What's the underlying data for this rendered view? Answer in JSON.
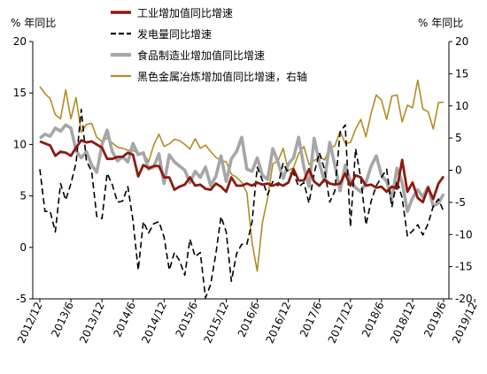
{
  "chart_data": {
    "type": "line",
    "left_axis_unit": "% 年同比",
    "right_axis_unit": "% 年同比",
    "left_ylim": [
      -5,
      20
    ],
    "right_ylim": [
      -20,
      20
    ],
    "left_ticks": [
      "20",
      "15",
      "10",
      "5",
      "0",
      "-5"
    ],
    "right_ticks": [
      "20",
      "15",
      "10",
      "5",
      "0",
      "-5",
      "-10",
      "-15",
      "-20"
    ],
    "x_tick_labels": [
      "2012/12",
      "2013/6",
      "2013/12",
      "2014/6",
      "2014/12",
      "2015/6",
      "2015/12",
      "2016/6",
      "2016/12",
      "2017/6",
      "2017/12",
      "2018/6",
      "2018/12",
      "2019/6",
      "2019/12"
    ],
    "start_month": "2012/12",
    "grid": false,
    "legend_position": "top",
    "series": [
      {
        "name": "工业增加值同比增速",
        "axis": "left",
        "color": "#8b1a10",
        "style": "solid",
        "values": [
          10.3,
          10.1,
          9.9,
          8.9,
          9.3,
          9.2,
          8.9,
          9.7,
          10.4,
          10.2,
          10.3,
          10.0,
          9.7,
          8.6,
          8.6,
          8.8,
          8.8,
          9.2,
          9.0,
          6.9,
          8.0,
          7.7,
          7.9,
          7.9,
          6.8,
          6.8,
          5.6,
          5.9,
          6.1,
          6.8,
          6.0,
          6.1,
          5.7,
          5.6,
          6.2,
          5.9,
          5.4,
          6.8,
          6.0,
          6.0,
          6.2,
          6.0,
          6.3,
          6.1,
          6.2,
          6.0,
          6.2,
          6.0,
          6.3,
          7.6,
          6.5,
          6.5,
          7.6,
          6.4,
          6.0,
          6.6,
          6.2,
          6.1,
          6.2,
          7.2,
          6.0,
          7.0,
          6.8,
          6.0,
          6.1,
          5.8,
          5.9,
          5.4,
          5.9,
          5.7,
          8.5,
          5.4,
          6.3,
          4.8,
          4.4,
          5.8,
          4.7,
          6.2,
          6.9
        ]
      },
      {
        "name": "发电量同比增速",
        "axis": "left",
        "color": "#000000",
        "style": "dashed",
        "values": [
          7.6,
          3.5,
          3.5,
          1.5,
          6.2,
          4.6,
          6.2,
          8.2,
          13.4,
          8.4,
          7.4,
          3.0,
          2.8,
          7.2,
          6.1,
          4.4,
          4.5,
          5.9,
          2.6,
          -2.2,
          2.5,
          1.4,
          2.3,
          2.5,
          1.0,
          -2.2,
          -0.5,
          -1.3,
          -2.7,
          0.8,
          -0.9,
          -0.5,
          -4.9,
          -3.6,
          -0.6,
          3.0,
          1.5,
          -3.3,
          -0.6,
          0.3,
          0.3,
          2.5,
          7.8,
          6.5,
          5.1,
          6.4,
          6.0,
          8.2,
          7.2,
          7.2,
          5.9,
          6.3,
          4.3,
          7.2,
          9.2,
          7.6,
          4.4,
          5.5,
          11.2,
          11.9,
          2.0,
          9.6,
          6.7,
          2.2,
          4.5,
          6.0,
          6.8,
          7.6,
          3.9,
          6.5,
          4.8,
          1.1,
          1.6,
          2.2,
          1.2,
          2.3,
          4.0,
          4.7,
          3.5
        ]
      },
      {
        "name": "食品制造业增加值同比增速",
        "axis": "left",
        "color": "#a6a6a6",
        "style": "solid",
        "values": [
          10.6,
          11.0,
          10.8,
          11.6,
          11.3,
          11.9,
          11.6,
          9.4,
          8.7,
          9.3,
          8.0,
          7.3,
          10.0,
          11.4,
          9.3,
          8.4,
          8.8,
          8.3,
          10.1,
          9.0,
          9.2,
          7.6,
          7.8,
          9.1,
          6.2,
          9.0,
          8.3,
          7.9,
          7.5,
          6.3,
          7.4,
          6.8,
          7.8,
          6.0,
          6.9,
          8.9,
          6.4,
          8.6,
          9.3,
          10.7,
          7.6,
          7.4,
          8.7,
          7.0,
          6.6,
          9.6,
          8.3,
          6.7,
          8.1,
          8.7,
          10.7,
          7.8,
          5.9,
          10.6,
          8.2,
          6.4,
          10.2,
          8.0,
          5.5,
          8.0,
          6.5,
          5.8,
          5.4,
          6.3,
          7.9,
          8.9,
          7.0,
          6.4,
          4.7,
          7.7,
          6.3,
          3.5,
          4.8,
          5.6,
          4.9,
          5.9,
          4.0,
          4.3,
          5.2
        ]
      },
      {
        "name": "黑色金属冶炼增加值同比增速，右轴",
        "axis": "right",
        "color": "#b08c25",
        "style": "solid",
        "values": [
          13.0,
          11.9,
          11.1,
          8.6,
          8.0,
          12.5,
          8.0,
          11.3,
          5.9,
          7.1,
          7.3,
          5.1,
          4.5,
          5.0,
          4.2,
          3.6,
          3.4,
          3.1,
          3.1,
          2.6,
          2.7,
          1.3,
          3.9,
          5.6,
          3.7,
          4.1,
          4.8,
          4.6,
          4.0,
          3.3,
          4.9,
          3.4,
          3.9,
          2.9,
          2.0,
          1.5,
          1.3,
          -0.6,
          -1.1,
          -1.9,
          -3.5,
          -11.3,
          -15.7,
          -8.1,
          -4.4,
          1.0,
          1.4,
          3.4,
          -0.1,
          0.4,
          2.6,
          3.7,
          0.9,
          1.5,
          2.1,
          1.6,
          3.4,
          3.8,
          6.0,
          4.2,
          4.3,
          6.4,
          7.9,
          5.2,
          8.9,
          11.7,
          10.9,
          7.9,
          11.5,
          11.7,
          7.5,
          10.1,
          9.7,
          14.0,
          9.5,
          9.1,
          6.4,
          10.5,
          10.6
        ]
      }
    ]
  }
}
